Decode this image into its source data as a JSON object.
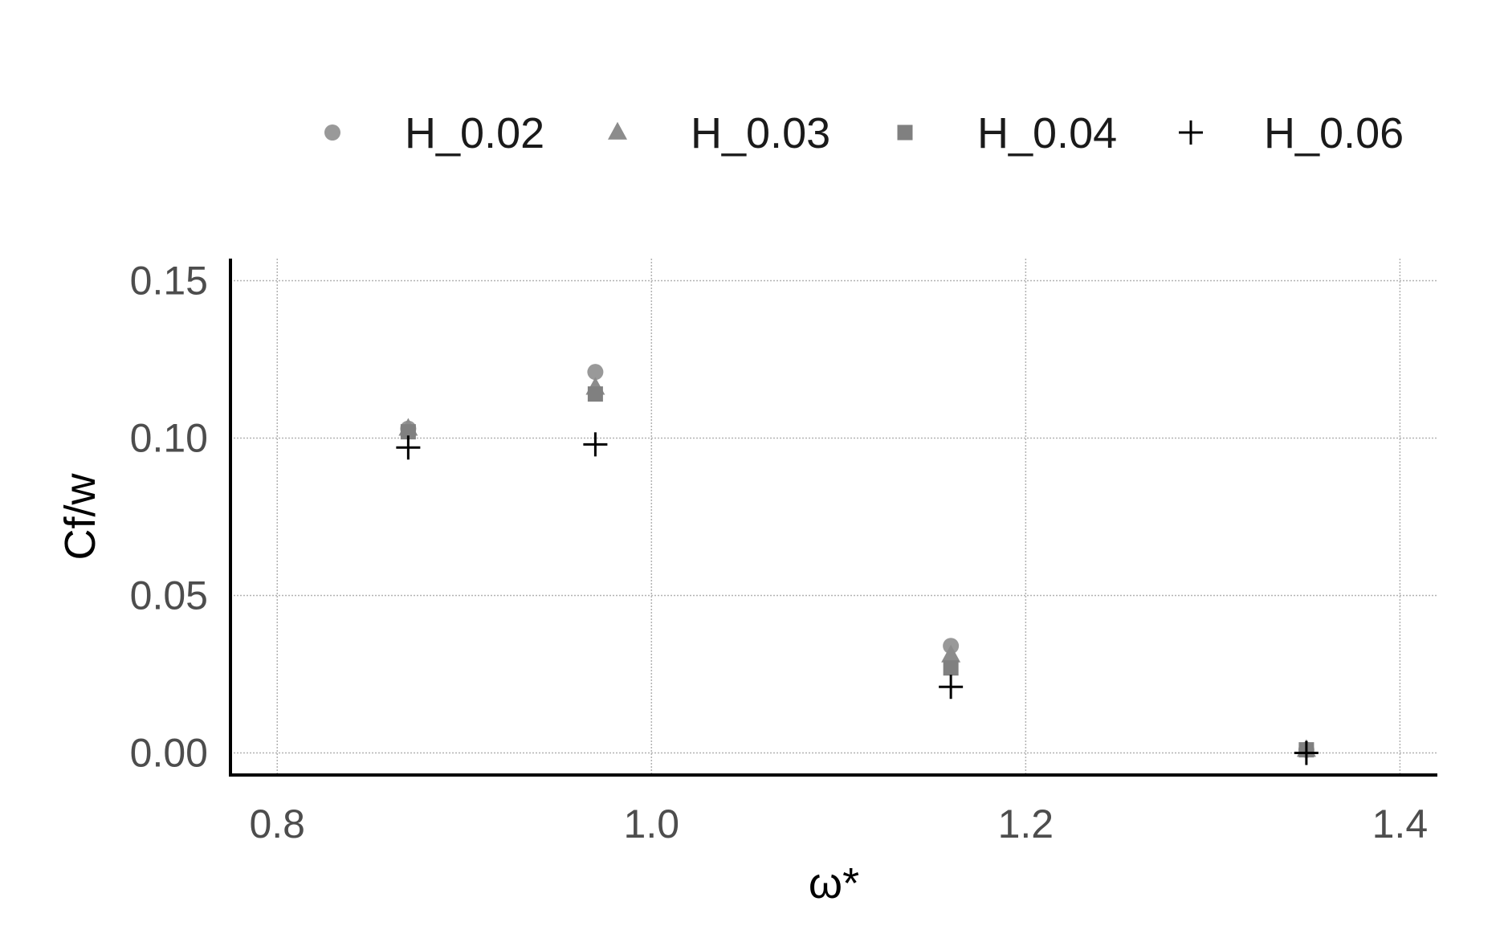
{
  "chart_data": {
    "type": "scatter",
    "title": "",
    "xlabel": "ω*",
    "ylabel": "Cf/w",
    "xlim": [
      0.775,
      1.42
    ],
    "ylim": [
      -0.007,
      0.157
    ],
    "x_ticks": [
      0.8,
      1.0,
      1.2,
      1.4
    ],
    "x_tick_labels": [
      "0.8",
      "1.0",
      "1.2",
      "1.4"
    ],
    "y_ticks": [
      0.0,
      0.05,
      0.1,
      0.15
    ],
    "y_tick_labels": [
      "0.00",
      "0.05",
      "0.10",
      "0.15"
    ],
    "grid": true,
    "legend_position": "top",
    "series": [
      {
        "name": "H_0.02",
        "marker": "circle",
        "color": "#999999",
        "x": [
          0.87,
          0.97,
          1.16,
          1.35
        ],
        "y": [
          0.103,
          0.121,
          0.034,
          0.001
        ]
      },
      {
        "name": "H_0.03",
        "marker": "triangle",
        "color": "#8c8c8c",
        "x": [
          0.87,
          0.97,
          1.16,
          1.35
        ],
        "y": [
          0.103,
          0.116,
          0.031,
          0.001
        ]
      },
      {
        "name": "H_0.04",
        "marker": "square",
        "color": "#808080",
        "x": [
          0.87,
          0.97,
          1.16,
          1.35
        ],
        "y": [
          0.102,
          0.114,
          0.027,
          0.001
        ]
      },
      {
        "name": "H_0.06",
        "marker": "plus",
        "color": "#000000",
        "x": [
          0.87,
          0.97,
          1.16,
          1.35
        ],
        "y": [
          0.097,
          0.098,
          0.021,
          0.0
        ]
      }
    ]
  }
}
